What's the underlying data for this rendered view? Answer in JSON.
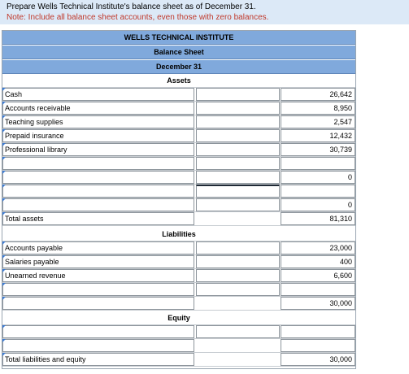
{
  "prompt": {
    "line1": "Prepare Wells Technical Institute's balance sheet as of December 31.",
    "line2": "Note: Include all balance sheet accounts, even those with zero balances."
  },
  "sheet": {
    "company": "WELLS TECHNICAL INSTITUTE",
    "statement": "Balance Sheet",
    "date": "December 31",
    "assets_heading": "Assets",
    "liabilities_heading": "Liabilities",
    "equity_heading": "Equity"
  },
  "assets": [
    {
      "label": "Cash",
      "currency": "$",
      "amount": "26,642"
    },
    {
      "label": "Accounts receivable",
      "currency": "",
      "amount": "8,950"
    },
    {
      "label": "Teaching supplies",
      "currency": "",
      "amount": "2,547"
    },
    {
      "label": "Prepaid insurance",
      "currency": "",
      "amount": "12,432"
    },
    {
      "label": "Professional library",
      "currency": "",
      "amount": "30,739"
    },
    {
      "label": "",
      "currency": "",
      "amount": ""
    },
    {
      "label": "",
      "currency": "",
      "amount": "0"
    },
    {
      "label": "",
      "currency": "",
      "amount": ""
    },
    {
      "label": "",
      "currency": "",
      "amount": "0"
    },
    {
      "label": "Total assets",
      "currency": "$",
      "amount": "81,310"
    }
  ],
  "liabilities": [
    {
      "label": "Accounts payable",
      "currency": "$",
      "amount": "23,000"
    },
    {
      "label": "Salaries payable",
      "currency": "",
      "amount": "400"
    },
    {
      "label": "Unearned revenue",
      "currency": "",
      "amount": "6,600"
    },
    {
      "label": "",
      "currency": "",
      "amount": ""
    },
    {
      "label": "",
      "currency": "",
      "amount": "30,000"
    }
  ],
  "equity": [
    {
      "label": "",
      "currency": "",
      "amount": ""
    },
    {
      "label": "",
      "currency": "",
      "amount": ""
    },
    {
      "label": "Total liabilities and equity",
      "currency": "$",
      "amount": "30,000"
    }
  ]
}
